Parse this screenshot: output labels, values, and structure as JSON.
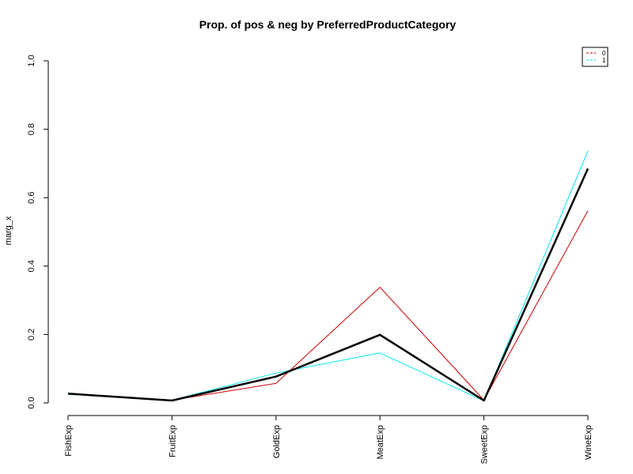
{
  "chart_data": {
    "type": "line",
    "title": "Prop. of pos & neg by PreferredProductCategory",
    "xlabel": "",
    "ylabel": "marg_x",
    "categories": [
      "FishExp",
      "FruitExp",
      "GoldExp",
      "MeatExp",
      "SweetExp",
      "WineExp"
    ],
    "ylim": [
      0,
      1.0
    ],
    "yticks": [
      "0.0",
      "0.2",
      "0.4",
      "0.6",
      "0.8",
      "1.0"
    ],
    "grid": false,
    "legend_position": "top-right",
    "series": [
      {
        "name": "",
        "color": "#000000",
        "style": "solid-thick",
        "values": [
          0.027,
          0.007,
          0.077,
          0.199,
          0.007,
          0.685
        ]
      },
      {
        "name": "0",
        "color": "#cc0000",
        "style": "solid",
        "values": [
          0.028,
          0.008,
          0.057,
          0.338,
          0.008,
          0.562
        ]
      },
      {
        "name": "1",
        "color": "#00e5ee",
        "style": "solid",
        "values": [
          0.025,
          0.008,
          0.087,
          0.146,
          0.006,
          0.737
        ]
      }
    ]
  }
}
